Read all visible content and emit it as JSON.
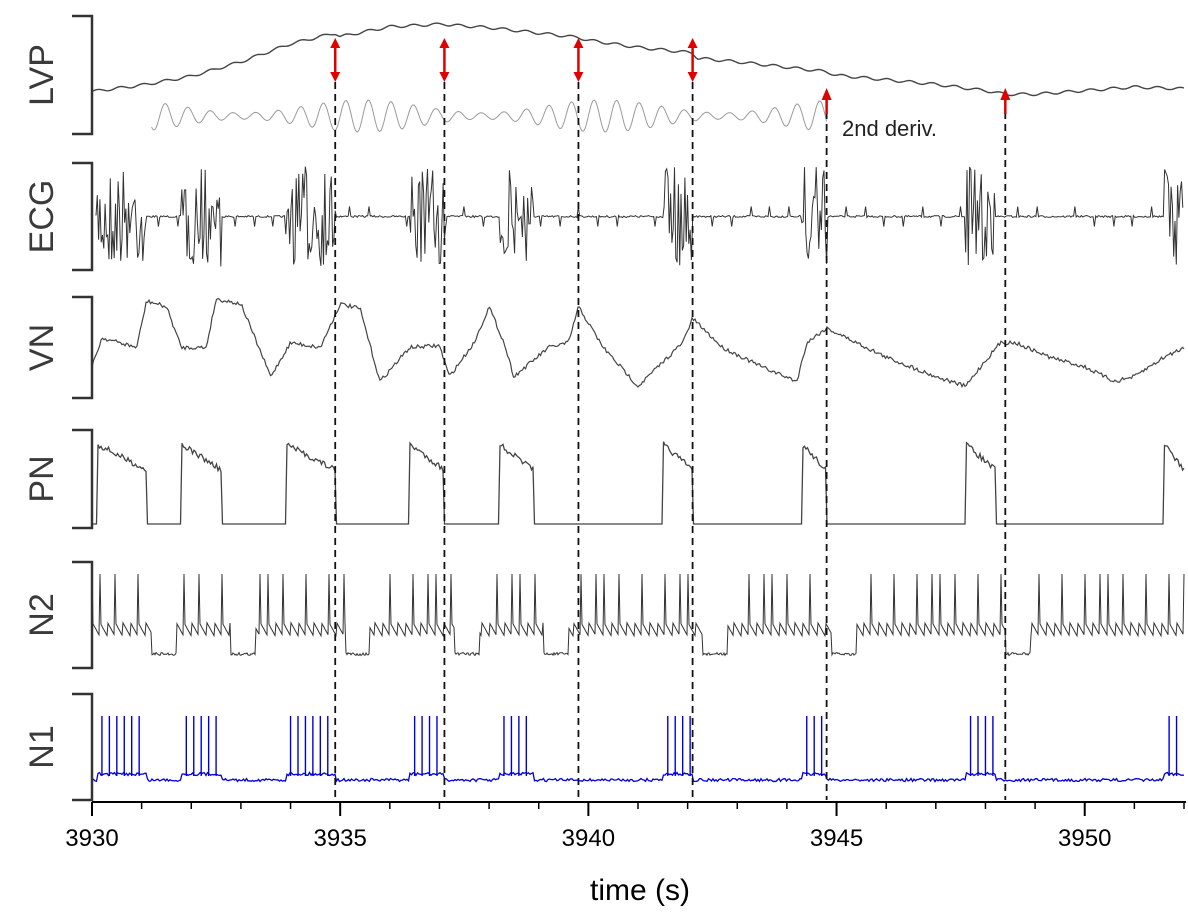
{
  "chart_data": {
    "type": "line",
    "xlabel": "time (s)",
    "xlim": [
      3930,
      3952
    ],
    "xticks": [
      3930,
      3935,
      3940,
      3945,
      3950
    ],
    "channels": [
      {
        "name": "LVP",
        "color": "#444444"
      },
      {
        "name": "ECG",
        "color": "#333333"
      },
      {
        "name": "VN",
        "color": "#444444"
      },
      {
        "name": "PN",
        "color": "#444444"
      },
      {
        "name": "N2",
        "color": "#333333"
      },
      {
        "name": "N1",
        "color": "#0000dd"
      }
    ],
    "lvp_trace": {
      "x": [
        3930,
        3931,
        3932,
        3933,
        3934,
        3934.9,
        3935,
        3936,
        3937.1,
        3937.2,
        3938,
        3939,
        3939.8,
        3940,
        3941,
        3942.1,
        3942.2,
        3943,
        3944,
        3944.8,
        3945,
        3946,
        3947,
        3948,
        3948.4,
        3949,
        3950,
        3951,
        3952
      ],
      "y": [
        0.25,
        0.32,
        0.42,
        0.58,
        0.78,
        0.9,
        0.86,
        0.97,
        1.0,
        0.99,
        0.96,
        0.9,
        0.85,
        0.82,
        0.74,
        0.68,
        0.62,
        0.58,
        0.52,
        0.47,
        0.43,
        0.38,
        0.33,
        0.26,
        0.22,
        0.22,
        0.26,
        0.3,
        0.28
      ]
    },
    "respiratory_bursts": {
      "start": [
        3930.1,
        3931.8,
        3933.9,
        3936.4,
        3938.2,
        3941.5,
        3944.3,
        3947.6,
        3951.6
      ],
      "end": [
        3931.1,
        3932.6,
        3934.9,
        3937.1,
        3938.9,
        3942.1,
        3944.8,
        3948.2,
        3952
      ]
    },
    "vn_trace": {
      "x": [
        3930,
        3930.2,
        3930.9,
        3931.1,
        3931.5,
        3931.8,
        3932.3,
        3932.5,
        3933,
        3933.6,
        3934,
        3934.6,
        3935,
        3935.4,
        3935.8,
        3936.4,
        3937,
        3937.2,
        3937.7,
        3938,
        3938.3,
        3938.5,
        3939.2,
        3939.6,
        3939.8,
        3940.3,
        3941,
        3941.4,
        3941.9,
        3942.1,
        3942.7,
        3943.5,
        3944.2,
        3944.4,
        3944.8,
        3945.2,
        3946,
        3947,
        3947.6,
        3947.9,
        3948.3,
        3948.6,
        3949.3,
        3950,
        3950.6,
        3951,
        3951.6,
        3952
      ],
      "y": [
        0.3,
        0.6,
        0.5,
        0.98,
        0.92,
        0.5,
        0.5,
        1.0,
        0.95,
        0.2,
        0.55,
        0.5,
        0.95,
        0.9,
        0.15,
        0.5,
        0.52,
        0.2,
        0.55,
        0.92,
        0.55,
        0.2,
        0.5,
        0.55,
        0.92,
        0.5,
        0.1,
        0.3,
        0.55,
        0.8,
        0.5,
        0.3,
        0.15,
        0.55,
        0.7,
        0.6,
        0.4,
        0.2,
        0.1,
        0.3,
        0.55,
        0.55,
        0.4,
        0.3,
        0.15,
        0.2,
        0.4,
        0.5
      ]
    },
    "n1_spike_times": [
      3930.2,
      3930.35,
      3930.5,
      3930.65,
      3930.8,
      3930.95,
      3931.9,
      3932.05,
      3932.2,
      3932.35,
      3932.5,
      3934.0,
      3934.15,
      3934.3,
      3934.45,
      3934.6,
      3934.75,
      3936.5,
      3936.65,
      3936.8,
      3936.95,
      3938.3,
      3938.45,
      3938.6,
      3938.75,
      3941.6,
      3941.75,
      3941.9,
      3942.05,
      3944.4,
      3944.55,
      3944.7,
      3947.7,
      3947.85,
      3948.0,
      3948.15,
      3951.7,
      3951.85
    ],
    "n2_burst_pauses": [
      3931.2,
      3932.8,
      3935.1,
      3937.3,
      3939.1,
      3942.3,
      3944.9,
      3948.4
    ],
    "markers": {
      "times": [
        3934.9,
        3937.1,
        3939.8,
        3942.1,
        3944.8,
        3948.4
      ],
      "arrow_style": [
        "double",
        "double",
        "double",
        "double",
        "up",
        "up"
      ],
      "arrow_color": "#e00000"
    },
    "annotation": "2nd deriv."
  }
}
